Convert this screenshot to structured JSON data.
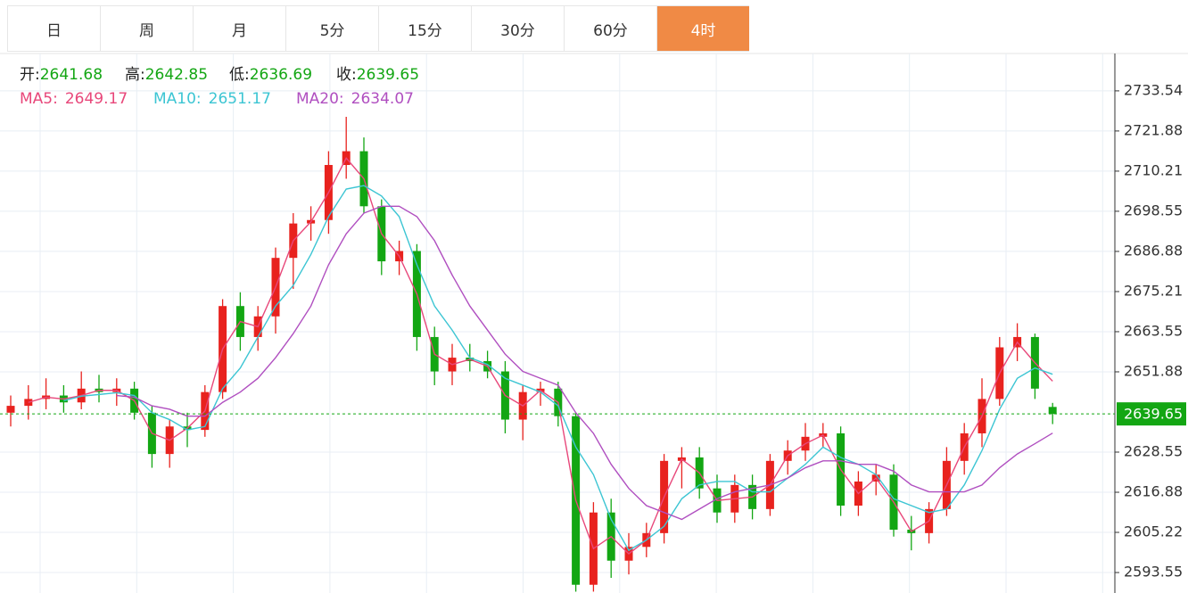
{
  "tabs": [
    "日",
    "周",
    "月",
    "5分",
    "15分",
    "30分",
    "60分",
    "4时"
  ],
  "active_tab": 7,
  "chart_data": {
    "type": "candlestick",
    "ohlc_labels": [
      "开:",
      "高:",
      "低:",
      "收:"
    ],
    "up_color": "#e8221e",
    "down_color": "#13a613",
    "open": [
      2640,
      2642,
      2644,
      2645,
      2643,
      2647,
      2646,
      2647,
      2640,
      2628,
      2636,
      2635,
      2646,
      2671,
      2662,
      2668,
      2685,
      2695,
      2696,
      2712,
      2716,
      2700,
      2684,
      2687,
      2662,
      2652,
      2656,
      2655,
      2652,
      2638,
      2646,
      2647,
      2639,
      2590,
      2611,
      2597,
      2601,
      2605,
      2626,
      2627,
      2618,
      2611,
      2619,
      2612,
      2626,
      2629,
      2633,
      2634,
      2613,
      2620,
      2622,
      2606,
      2605,
      2612,
      2626,
      2634,
      2644,
      2659,
      2662,
      2641.68
    ],
    "high": [
      2645,
      2648,
      2650,
      2648,
      2652,
      2651,
      2650,
      2649,
      2642,
      2638,
      2640,
      2648,
      2673,
      2675,
      2671,
      2688,
      2698,
      2700,
      2716,
      2726,
      2720,
      2702,
      2690,
      2689,
      2665,
      2660,
      2660,
      2658,
      2655,
      2648,
      2649,
      2649,
      2640,
      2614,
      2615,
      2605,
      2608,
      2628,
      2630,
      2630,
      2622,
      2622,
      2622,
      2628,
      2632,
      2637,
      2637,
      2636,
      2623,
      2625,
      2625,
      2610,
      2614,
      2630,
      2637,
      2650,
      2662,
      2666,
      2663,
      2642.85
    ],
    "low": [
      2636,
      2638,
      2641,
      2640,
      2641,
      2643,
      2642,
      2638,
      2624,
      2624,
      2630,
      2633,
      2644,
      2658,
      2658,
      2663,
      2676,
      2690,
      2692,
      2708,
      2698,
      2680,
      2680,
      2658,
      2648,
      2648,
      2652,
      2650,
      2634,
      2632,
      2642,
      2636,
      2588,
      2588,
      2592,
      2593,
      2598,
      2602,
      2618,
      2615,
      2608,
      2608,
      2609,
      2610,
      2622,
      2626,
      2630,
      2610,
      2610,
      2616,
      2604,
      2600,
      2602,
      2610,
      2622,
      2630,
      2642,
      2655,
      2644,
      2636.69
    ],
    "close": [
      2642,
      2644,
      2645,
      2643,
      2647,
      2646,
      2647,
      2640,
      2628,
      2636,
      2635,
      2646,
      2671,
      2662,
      2668,
      2685,
      2695,
      2696,
      2712,
      2716,
      2700,
      2684,
      2687,
      2662,
      2652,
      2656,
      2655,
      2652,
      2638,
      2646,
      2647,
      2639,
      2590,
      2611,
      2597,
      2601,
      2605,
      2626,
      2627,
      2618,
      2611,
      2619,
      2612,
      2626,
      2629,
      2633,
      2634,
      2613,
      2620,
      2622,
      2606,
      2605,
      2612,
      2626,
      2634,
      2644,
      2659,
      2662,
      2647,
      2639.65
    ],
    "series": [
      {
        "name": "MA5:",
        "color": "#e8477a",
        "values": [
          null,
          2643,
          2644.5,
          2644,
          2645,
          2646.5,
          2646.5,
          2643.5,
          2634,
          2632,
          2635.5,
          2640.5,
          2658.5,
          2666.5,
          2665,
          2676.5,
          2690,
          2695.5,
          2704,
          2714,
          2708,
          2692,
          2685.5,
          2674.5,
          2657,
          2654,
          2655.5,
          2653.5,
          2645,
          2642,
          2646.5,
          2643,
          2614.5,
          2600.5,
          2604,
          2599,
          2603,
          2615.5,
          2626.5,
          2622.5,
          2614.5,
          2615,
          2615.5,
          2619,
          2627.5,
          2631,
          2633.5,
          2623.5,
          2616.5,
          2621,
          2614,
          2605.5,
          2608.5,
          2619,
          2630,
          2639,
          2651.5,
          2660.5,
          2654.5,
          2649.17
        ]
      },
      {
        "name": "MA10:",
        "color": "#3cc5d3",
        "values": [
          null,
          null,
          null,
          2643.5,
          2644.8,
          2645.3,
          2645.8,
          2645,
          2640,
          2638,
          2635,
          2636,
          2647,
          2653,
          2662,
          2671,
          2677,
          2686,
          2697,
          2705,
          2706,
          2703,
          2697,
          2683,
          2671,
          2664,
          2656,
          2654,
          2650,
          2648,
          2646,
          2642,
          2630,
          2622,
          2609,
          2600,
          2603,
          2607,
          2615,
          2619,
          2620,
          2620,
          2617,
          2617,
          2621,
          2625,
          2630,
          2627,
          2625,
          2622,
          2615,
          2613,
          2611,
          2612,
          2619,
          2629,
          2641,
          2650,
          2653,
          2651.17
        ]
      },
      {
        "name": "MA20:",
        "color": "#b04fc0",
        "values": [
          null,
          null,
          null,
          null,
          null,
          null,
          2645,
          2644.5,
          2642,
          2641,
          2639,
          2639,
          2643,
          2646,
          2650,
          2656,
          2663,
          2671,
          2683,
          2692,
          2698,
          2700,
          2700,
          2697,
          2690,
          2680,
          2671,
          2664,
          2657,
          2652,
          2650,
          2648,
          2640,
          2634,
          2625,
          2618,
          2613,
          2611,
          2609,
          2612,
          2615,
          2617,
          2618,
          2619,
          2621,
          2624,
          2626,
          2626,
          2625,
          2625,
          2623,
          2619,
          2617,
          2617,
          2617,
          2619,
          2624,
          2628,
          2631,
          2634.07
        ]
      }
    ],
    "ylim": [
      2587.6,
      2744.4
    ],
    "yticks": [
      2733.54,
      2721.88,
      2710.21,
      2698.55,
      2686.88,
      2675.21,
      2663.55,
      2651.88,
      2628.55,
      2616.88,
      2605.22,
      2593.55
    ],
    "grid": true
  }
}
